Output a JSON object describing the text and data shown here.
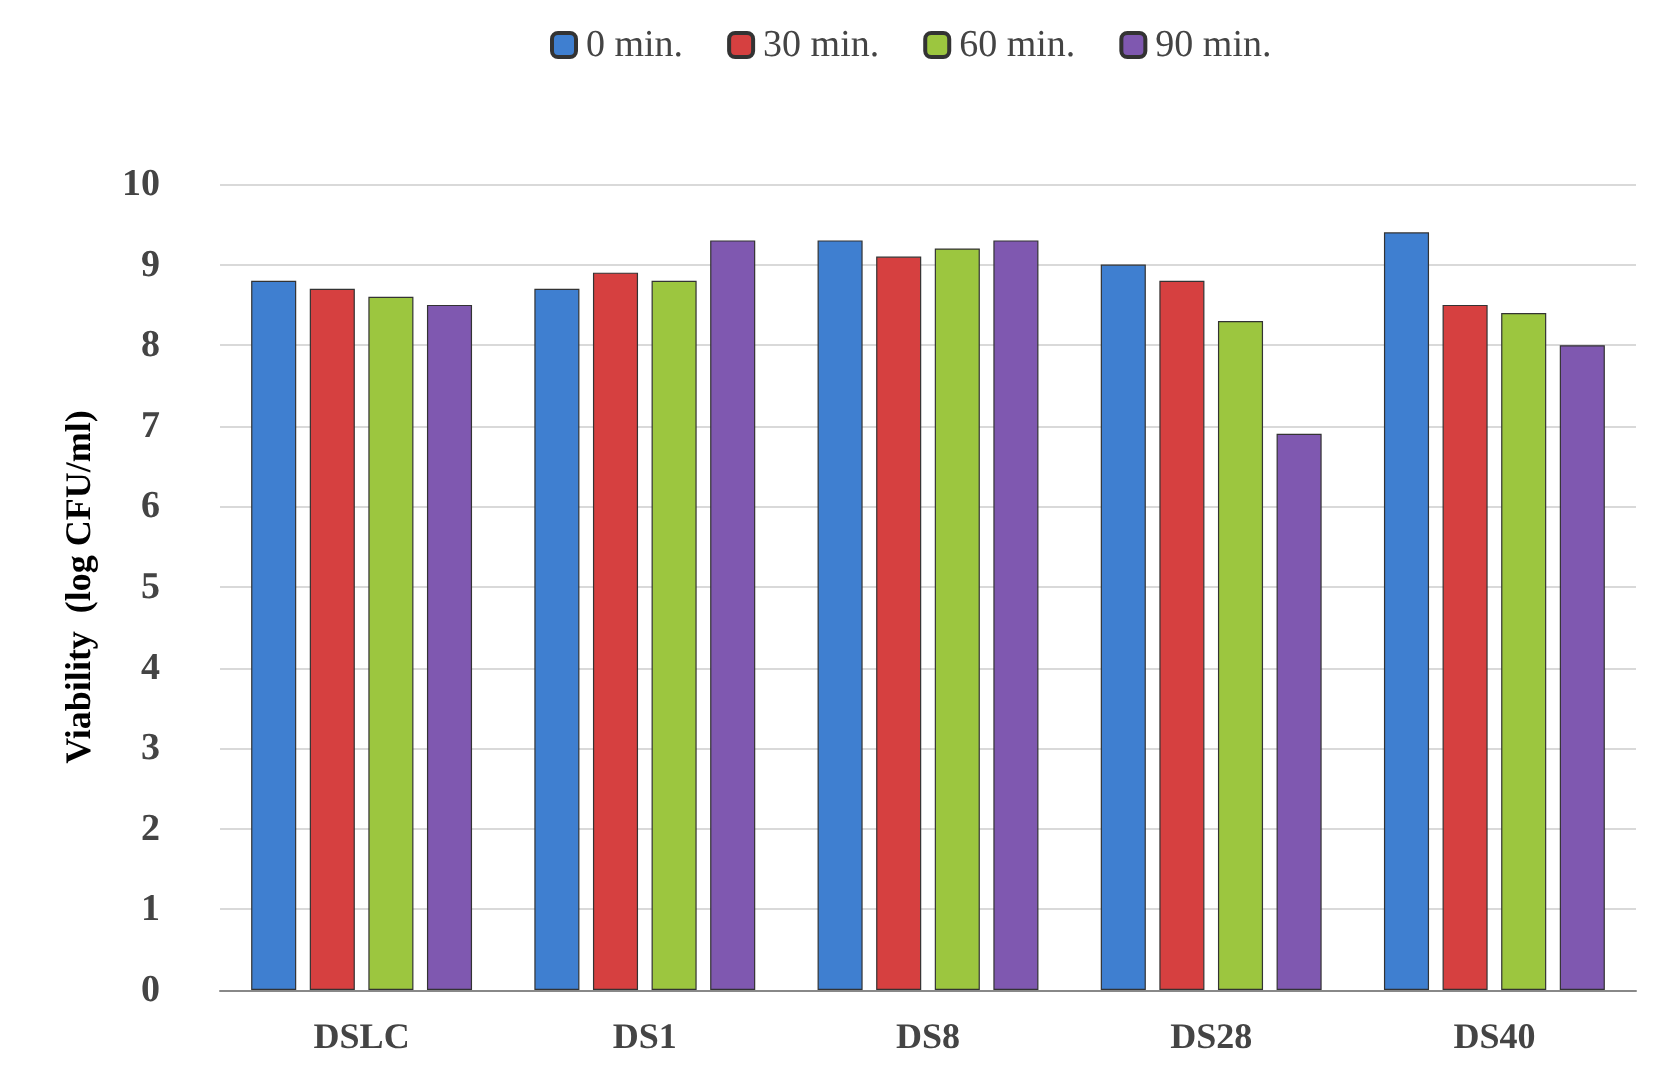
{
  "chart_data": {
    "type": "bar",
    "ylabel": "Viability  (log CFU/ml)",
    "categories": [
      "DSLC",
      "DS1",
      "DS8",
      "DS28",
      "DS40"
    ],
    "series": [
      {
        "name": "0 min.",
        "color": "#3f7fd0",
        "values": [
          8.8,
          8.7,
          9.3,
          9.0,
          9.4
        ]
      },
      {
        "name": "30 min.",
        "color": "#d64040",
        "values": [
          8.7,
          8.9,
          9.1,
          8.8,
          8.5
        ]
      },
      {
        "name": "60 min.",
        "color": "#9cc63f",
        "values": [
          8.6,
          8.8,
          9.2,
          8.3,
          8.4
        ]
      },
      {
        "name": "90 min.",
        "color": "#7f58b0",
        "values": [
          8.5,
          9.3,
          9.3,
          6.9,
          8.0
        ]
      }
    ],
    "ylim": [
      0,
      10
    ],
    "yticks": [
      0,
      1,
      2,
      3,
      4,
      5,
      6,
      7,
      8,
      9,
      10
    ],
    "grid": "y",
    "legend": "top"
  }
}
